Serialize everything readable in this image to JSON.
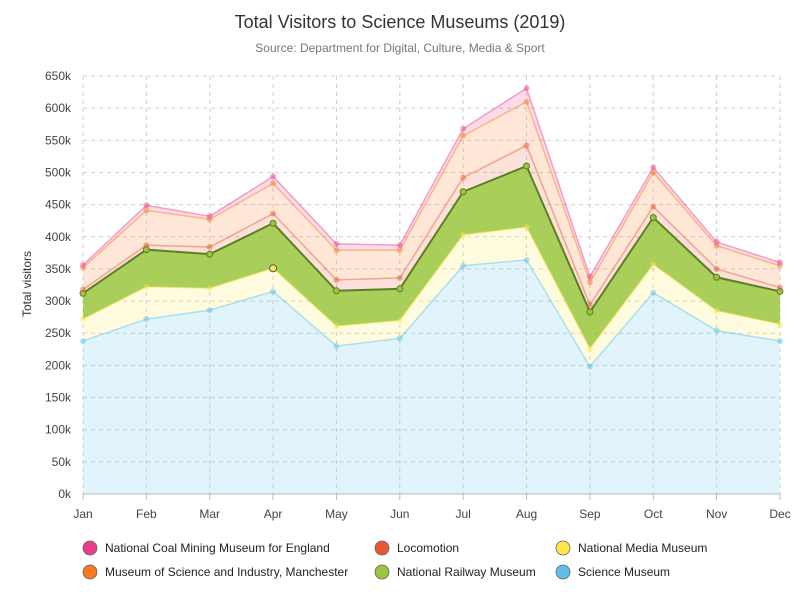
{
  "chart_data": {
    "type": "area",
    "stacked": true,
    "title": "Total Visitors to Science Museums (2019)",
    "subtitle": "Source: Department for Digital, Culture, Media & Sport",
    "xlabel": "",
    "ylabel": "Total visitors",
    "categories": [
      "Jan",
      "Feb",
      "Mar",
      "Apr",
      "May",
      "Jun",
      "Jul",
      "Aug",
      "Sep",
      "Oct",
      "Nov",
      "Dec"
    ],
    "ylim": [
      0,
      650000
    ],
    "yticks": [
      0,
      50000,
      100000,
      150000,
      200000,
      250000,
      300000,
      350000,
      400000,
      450000,
      500000,
      550000,
      600000,
      650000
    ],
    "ytick_labels": [
      "0k",
      "50k",
      "100k",
      "150k",
      "200k",
      "250k",
      "300k",
      "350k",
      "400k",
      "450k",
      "500k",
      "550k",
      "600k",
      "650k"
    ],
    "grid": true,
    "legend_position": "bottom",
    "series": [
      {
        "name": "Science Museum",
        "color": "#5bc0eb",
        "values": [
          238000,
          272000,
          286000,
          315000,
          230000,
          242000,
          355000,
          364000,
          198000,
          313000,
          254000,
          238000
        ]
      },
      {
        "name": "National Media Museum",
        "color": "#fde74c",
        "values": [
          34000,
          50000,
          34000,
          36000,
          31000,
          28000,
          48000,
          51000,
          28000,
          44000,
          31000,
          26000
        ]
      },
      {
        "name": "National Railway Museum",
        "color": "#9bc53d",
        "values": [
          40000,
          58000,
          53000,
          70000,
          55000,
          49000,
          67000,
          95000,
          57000,
          73000,
          52000,
          51000
        ]
      },
      {
        "name": "Locomotion",
        "color": "#e55934",
        "values": [
          6000,
          7000,
          11000,
          15000,
          17000,
          17000,
          22000,
          32000,
          11000,
          17000,
          13000,
          6000
        ]
      },
      {
        "name": "Museum of Science and Industry, Manchester",
        "color": "#fa7921",
        "values": [
          34000,
          54000,
          43000,
          47000,
          46000,
          43000,
          65000,
          68000,
          35000,
          53000,
          36000,
          34000
        ]
      },
      {
        "name": "National Coal Mining Museum for England",
        "color": "#e83e8c",
        "values": [
          4000,
          8000,
          5000,
          11000,
          10000,
          8000,
          11000,
          21000,
          9000,
          8000,
          6000,
          5000
        ]
      }
    ],
    "legend_order": [
      "National Coal Mining Museum for England",
      "Locomotion",
      "National Media Museum",
      "Museum of Science and Industry, Manchester",
      "National Railway Museum",
      "Science Museum"
    ]
  }
}
